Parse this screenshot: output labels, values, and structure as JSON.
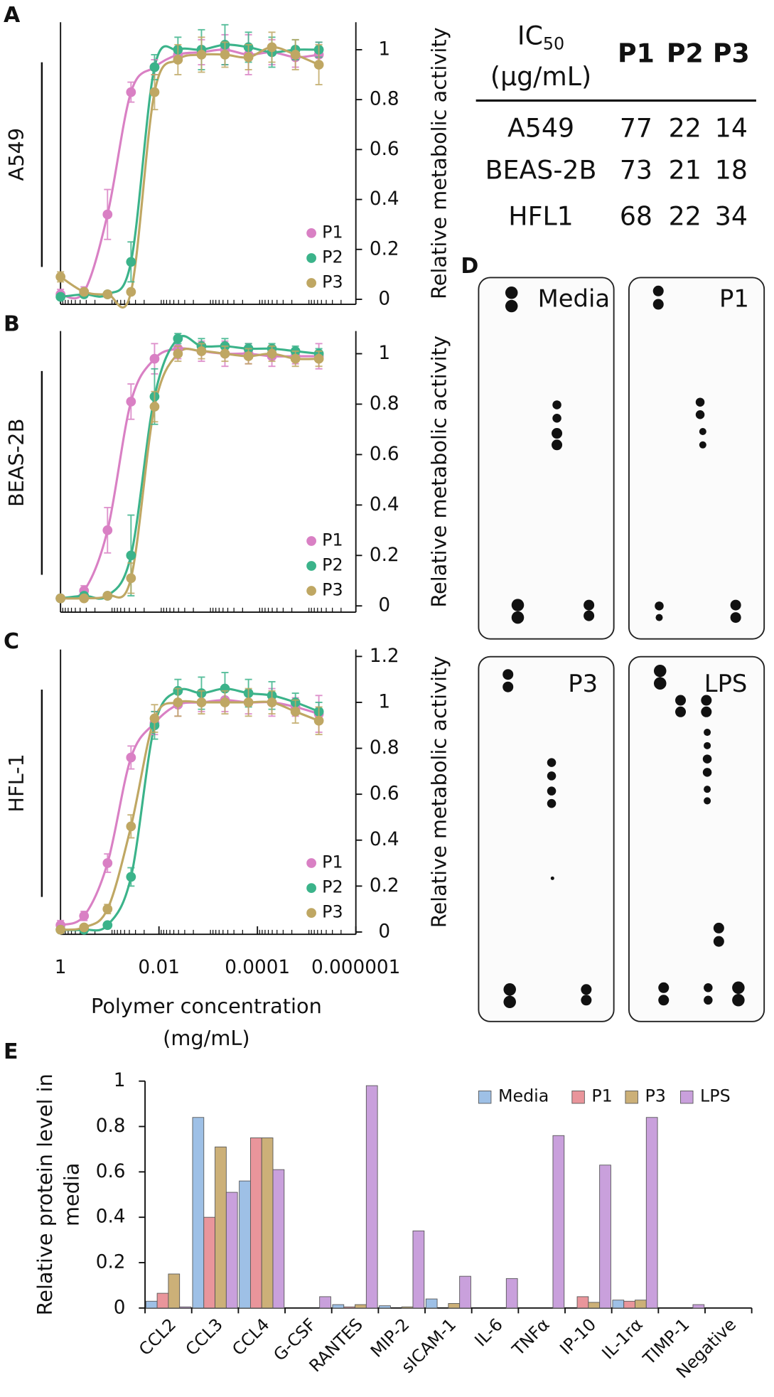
{
  "labels": {
    "A": "A",
    "B": "B",
    "C": "C",
    "D": "D",
    "E": "E"
  },
  "table": {
    "corner": {
      "main": "IC",
      "sub": "50",
      "unit": "(μg/mL)"
    },
    "columns": [
      "P1",
      "P2",
      "P3"
    ],
    "rows": [
      {
        "label": "A549",
        "values": [
          77,
          22,
          14
        ]
      },
      {
        "label": "BEAS-2B",
        "values": [
          73,
          21,
          18
        ]
      },
      {
        "label": "HFL1",
        "values": [
          68,
          22,
          34
        ]
      }
    ]
  },
  "blot": {
    "labels": [
      "Media",
      "P1",
      "P3",
      "LPS"
    ]
  },
  "chart_data": [
    {
      "type": "scatter",
      "row_label": "A549",
      "ylabel": "Relative metabolic activity",
      "log_x": true,
      "legend": "lower right",
      "x": [
        1,
        0.333,
        0.111,
        0.037,
        0.0123,
        0.00412,
        0.00137,
        0.000457,
        0.000152,
        5.08e-05,
        1.69e-05,
        5.65e-06
      ],
      "xlim": [
        1,
        1e-06
      ],
      "ylim": [
        -0.02,
        1.11
      ],
      "yticks": [
        0,
        0.2,
        0.4,
        0.6,
        0.8,
        1
      ],
      "series": [
        {
          "name": "P1",
          "color": "#d980c4",
          "values": [
            0.02,
            0.03,
            0.34,
            0.83,
            0.93,
            0.98,
            0.99,
            1.0,
            0.98,
            0.99,
            0.97,
            0.98
          ],
          "errors": [
            0.02,
            0.02,
            0.1,
            0.04,
            0.03,
            0.03,
            0.05,
            0.06,
            0.08,
            0.05,
            0.04,
            0.05
          ]
        },
        {
          "name": "P2",
          "color": "#3bb38a",
          "values": [
            0.01,
            0.02,
            0.02,
            0.15,
            0.93,
            1.0,
            1.0,
            1.02,
            1.01,
            0.99,
            1.0,
            1.0
          ],
          "errors": [
            0.01,
            0.01,
            0.01,
            0.08,
            0.05,
            0.05,
            0.08,
            0.08,
            0.06,
            0.06,
            0.04,
            0.03
          ]
        },
        {
          "name": "P3",
          "color": "#bfa763",
          "values": [
            0.09,
            0.03,
            0.02,
            0.03,
            0.83,
            0.96,
            0.98,
            0.98,
            0.97,
            1.01,
            0.98,
            0.94
          ],
          "errors": [
            0.02,
            0.01,
            0.01,
            0.01,
            0.07,
            0.06,
            0.07,
            0.05,
            0.05,
            0.06,
            0.06,
            0.08
          ]
        }
      ]
    },
    {
      "type": "scatter",
      "row_label": "BEAS-2B",
      "ylabel": "Relative metabolic activity",
      "log_x": true,
      "legend": "lower right",
      "x": [
        1,
        0.333,
        0.111,
        0.037,
        0.0123,
        0.00412,
        0.00137,
        0.000457,
        0.000152,
        5.08e-05,
        1.69e-05,
        5.65e-06
      ],
      "xlim": [
        1,
        1e-06
      ],
      "ylim": [
        -0.025,
        1.09
      ],
      "yticks": [
        0,
        0.2,
        0.4,
        0.6,
        0.8,
        1
      ],
      "series": [
        {
          "name": "P1",
          "color": "#d980c4",
          "values": [
            0.03,
            0.06,
            0.3,
            0.81,
            0.98,
            1.02,
            1.01,
            1.0,
            1.0,
            0.99,
            0.99,
            0.99
          ],
          "errors": [
            0.01,
            0.02,
            0.09,
            0.07,
            0.06,
            0.04,
            0.04,
            0.05,
            0.04,
            0.04,
            0.03,
            0.05
          ]
        },
        {
          "name": "P2",
          "color": "#3bb38a",
          "values": [
            0.03,
            0.04,
            0.04,
            0.2,
            0.83,
            1.06,
            1.03,
            1.03,
            1.02,
            1.02,
            1.01,
            1.0
          ],
          "errors": [
            0.01,
            0.01,
            0.01,
            0.16,
            0.11,
            0.02,
            0.03,
            0.03,
            0.02,
            0.02,
            0.02,
            0.02
          ]
        },
        {
          "name": "P3",
          "color": "#bfa763",
          "values": [
            0.03,
            0.03,
            0.04,
            0.11,
            0.79,
            1.0,
            1.01,
            1.0,
            0.99,
            1.0,
            0.98,
            0.98
          ],
          "errors": [
            0.01,
            0.01,
            0.01,
            0.06,
            0.06,
            0.03,
            0.03,
            0.03,
            0.03,
            0.03,
            0.03,
            0.03
          ]
        }
      ]
    },
    {
      "type": "scatter",
      "row_label": "HFL-1",
      "ylabel": "Relative metabolic activity",
      "xlabel": [
        "Polymer concentration",
        "(mg/mL)"
      ],
      "log_x": true,
      "legend": "lower right",
      "x": [
        1,
        0.333,
        0.111,
        0.037,
        0.0123,
        0.00412,
        0.00137,
        0.000457,
        0.000152,
        5.08e-05,
        1.69e-05,
        5.65e-06
      ],
      "xlim": [
        1,
        1e-06
      ],
      "xticks": [
        1,
        0.01,
        0.0001,
        1e-06
      ],
      "ylim": [
        -0.01,
        1.23
      ],
      "yticks": [
        0,
        0.2,
        0.4,
        0.6,
        0.8,
        1,
        1.2
      ],
      "series": [
        {
          "name": "P1",
          "color": "#d980c4",
          "values": [
            0.03,
            0.07,
            0.3,
            0.76,
            0.91,
            0.99,
            1.0,
            1.01,
            1.0,
            1.0,
            0.98,
            0.95
          ],
          "errors": [
            0.02,
            0.02,
            0.04,
            0.05,
            0.05,
            0.05,
            0.04,
            0.05,
            0.05,
            0.06,
            0.04,
            0.08
          ]
        },
        {
          "name": "P2",
          "color": "#3bb38a",
          "values": [
            0.01,
            0.01,
            0.03,
            0.24,
            0.9,
            1.05,
            1.04,
            1.06,
            1.04,
            1.03,
            1.0,
            0.96
          ],
          "errors": [
            0.01,
            0.01,
            0.01,
            0.04,
            0.06,
            0.05,
            0.07,
            0.07,
            0.06,
            0.06,
            0.04,
            0.04
          ]
        },
        {
          "name": "P3",
          "color": "#bfa763",
          "values": [
            0.01,
            0.02,
            0.1,
            0.46,
            0.93,
            1.0,
            1.0,
            1.0,
            1.0,
            1.0,
            0.96,
            0.92
          ],
          "errors": [
            0.01,
            0.01,
            0.02,
            0.05,
            0.06,
            0.06,
            0.05,
            0.05,
            0.06,
            0.05,
            0.05,
            0.06
          ]
        }
      ]
    },
    {
      "type": "bar",
      "ylabel": [
        "Relative protein level in",
        "media"
      ],
      "legend": "upper right",
      "categories": [
        "CCL2",
        "CCL3",
        "CCL4",
        "G-CSF",
        "RANTES",
        "MIP-2",
        "sICAM-1",
        "IL-6",
        "TNFα",
        "IP-10",
        "IL-1rα",
        "TIMP-1",
        "Negative"
      ],
      "ylim": [
        0,
        1
      ],
      "yticks": [
        0,
        0.2,
        0.4,
        0.6,
        0.8,
        1
      ],
      "series": [
        {
          "name": "Media",
          "color": "#9ec0e6",
          "values": [
            0.03,
            0.84,
            0.56,
            0,
            0.015,
            0.01,
            0.04,
            0,
            0,
            0,
            0.035,
            0,
            0
          ]
        },
        {
          "name": "P1",
          "color": "#e9959b",
          "values": [
            0.065,
            0.4,
            0.75,
            0,
            0.005,
            0,
            0,
            0,
            0,
            0.05,
            0.03,
            0,
            0
          ]
        },
        {
          "name": "P3",
          "color": "#ccb078",
          "values": [
            0.15,
            0.71,
            0.75,
            0,
            0.015,
            0.005,
            0.02,
            0,
            0,
            0.025,
            0.035,
            0,
            0
          ]
        },
        {
          "name": "LPS",
          "color": "#c9a0dc",
          "values": [
            0.005,
            0.51,
            0.61,
            0.05,
            0.98,
            0.34,
            0.14,
            0.13,
            0.76,
            0.63,
            0.84,
            0.015,
            0
          ]
        }
      ]
    }
  ]
}
